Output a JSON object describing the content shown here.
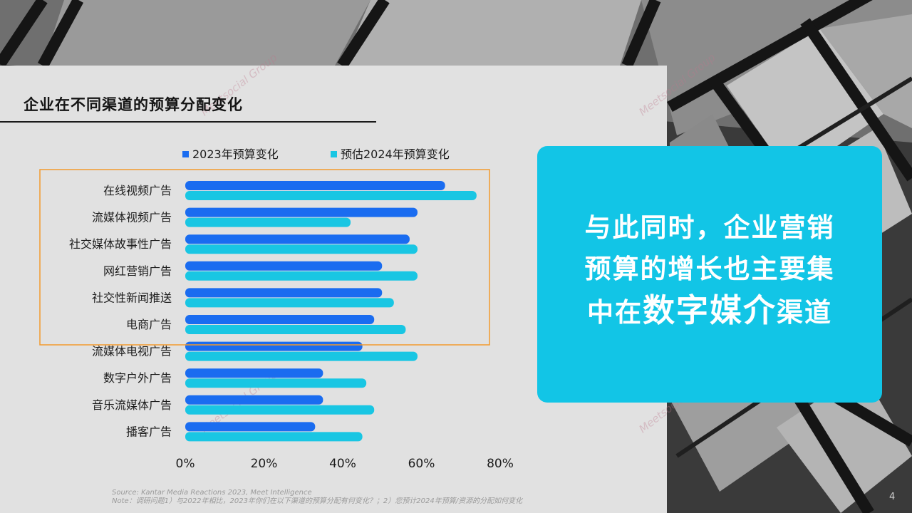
{
  "title": "企业在不同渠道的预算分配变化",
  "legend": {
    "series1": "2023年预算变化",
    "series2": "预估2024年预算变化",
    "color1": "#1a6cf0",
    "color2": "#19c6e3"
  },
  "chart_data": {
    "type": "bar",
    "orientation": "horizontal",
    "categories": [
      "在线视频广告",
      "流媒体视频广告",
      "社交媒体故事性广告",
      "网红营销广告",
      "社交性新闻推送",
      "电商广告",
      "流媒体电视广告",
      "数字户外广告",
      "音乐流媒体广告",
      "播客广告"
    ],
    "series": [
      {
        "name": "2023年预算变化",
        "values": [
          66,
          59,
          57,
          50,
          50,
          48,
          45,
          35,
          35,
          33
        ]
      },
      {
        "name": "预估2024年预算变化",
        "values": [
          74,
          42,
          59,
          59,
          53,
          56,
          59,
          46,
          48,
          45
        ]
      }
    ],
    "xlim": [
      0,
      80
    ],
    "xticks": [
      "0%",
      "20%",
      "40%",
      "60%",
      "80%"
    ],
    "highlight_box_covers_first": 6
  },
  "callout": {
    "line1": "与此同时，企业营销",
    "line2": "预算的增长也主要集",
    "line3_a": "中在",
    "line3_b": "数字媒介",
    "line3_c": "渠道",
    "color": "#12c5e6"
  },
  "source": {
    "line1": "Source: Kantar Media Reactions 2023, Meet Intelligence",
    "line2": "Note：调研问题1）与2022年相比，2023年你们在以下渠道的预算分配有何变化？；2）您预计2024年预算/资源的分配如何变化"
  },
  "watermark": "Meetsocial Group",
  "page_number": "4"
}
